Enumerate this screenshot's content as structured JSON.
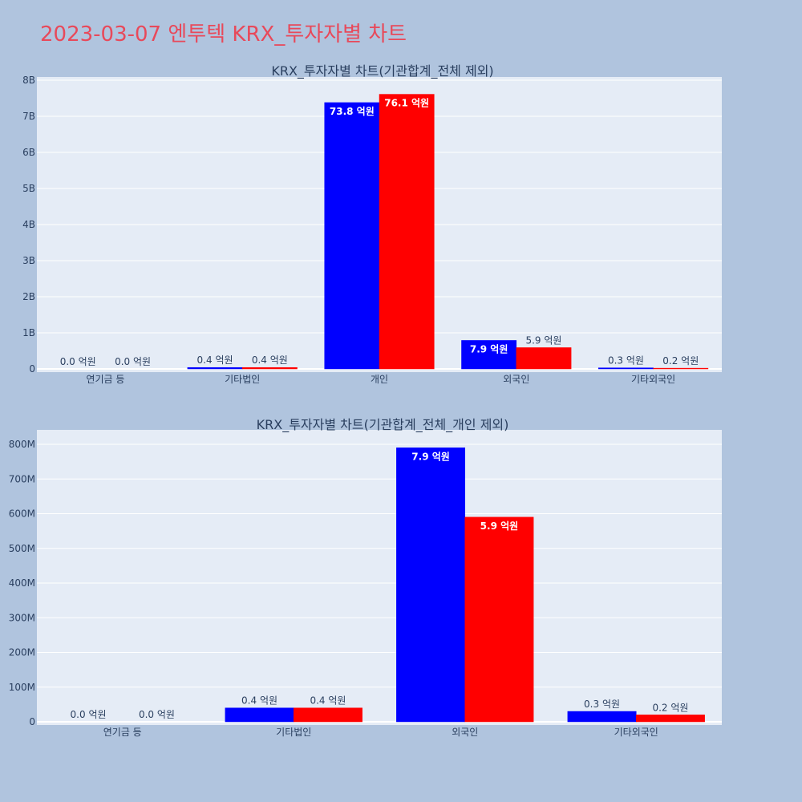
{
  "page_title": "2023-03-07 엔투텍 KRX_투자자별 차트",
  "colors": {
    "background": "#b0c4de",
    "plot_bg": "#e5ecf6",
    "title": "#e8495a",
    "text": "#2a3f5f",
    "buy": "#0000ff",
    "sell": "#ff0000"
  },
  "chart_data": [
    {
      "type": "bar",
      "title": "KRX_투자자별 차트(기관합계_전체 제외)",
      "categories": [
        "연기금 등",
        "기타법인",
        "개인",
        "외국인",
        "기타외국인"
      ],
      "series": [
        {
          "color": "#0000ff",
          "values": [
            0,
            40000000,
            7380000000,
            790000000,
            30000000
          ],
          "labels": [
            "0.0 억원",
            "0.4 억원",
            "73.8 억원",
            "7.9 억원",
            "0.3 억원"
          ]
        },
        {
          "color": "#ff0000",
          "values": [
            0,
            40000000,
            7610000000,
            590000000,
            20000000
          ],
          "labels": [
            "0.0 억원",
            "0.4 억원",
            "76.1 억원",
            "5.9 억원",
            "0.2 억원"
          ]
        }
      ],
      "ylim": [
        0,
        8000000000
      ],
      "yticks": [
        0,
        1000000000,
        2000000000,
        3000000000,
        4000000000,
        5000000000,
        6000000000,
        7000000000,
        8000000000
      ],
      "ytick_labels": [
        "0",
        "1B",
        "2B",
        "3B",
        "4B",
        "5B",
        "6B",
        "7B",
        "8B"
      ],
      "grid": true
    },
    {
      "type": "bar",
      "title": "KRX_투자자별 차트(기관합계_전체_개인 제외)",
      "categories": [
        "연기금 등",
        "기타법인",
        "외국인",
        "기타외국인"
      ],
      "series": [
        {
          "color": "#0000ff",
          "values": [
            0,
            40000000,
            790000000,
            30000000
          ],
          "labels": [
            "0.0 억원",
            "0.4 억원",
            "7.9 억원",
            "0.3 억원"
          ]
        },
        {
          "color": "#ff0000",
          "values": [
            0,
            40000000,
            590000000,
            20000000
          ],
          "labels": [
            "0.0 억원",
            "0.4 억원",
            "5.9 억원",
            "0.2 억원"
          ]
        }
      ],
      "ylim": [
        0,
        840000000
      ],
      "yticks": [
        0,
        100000000,
        200000000,
        300000000,
        400000000,
        500000000,
        600000000,
        700000000,
        800000000
      ],
      "ytick_labels": [
        "0",
        "100M",
        "200M",
        "300M",
        "400M",
        "500M",
        "600M",
        "700M",
        "800M"
      ],
      "grid": true
    }
  ]
}
